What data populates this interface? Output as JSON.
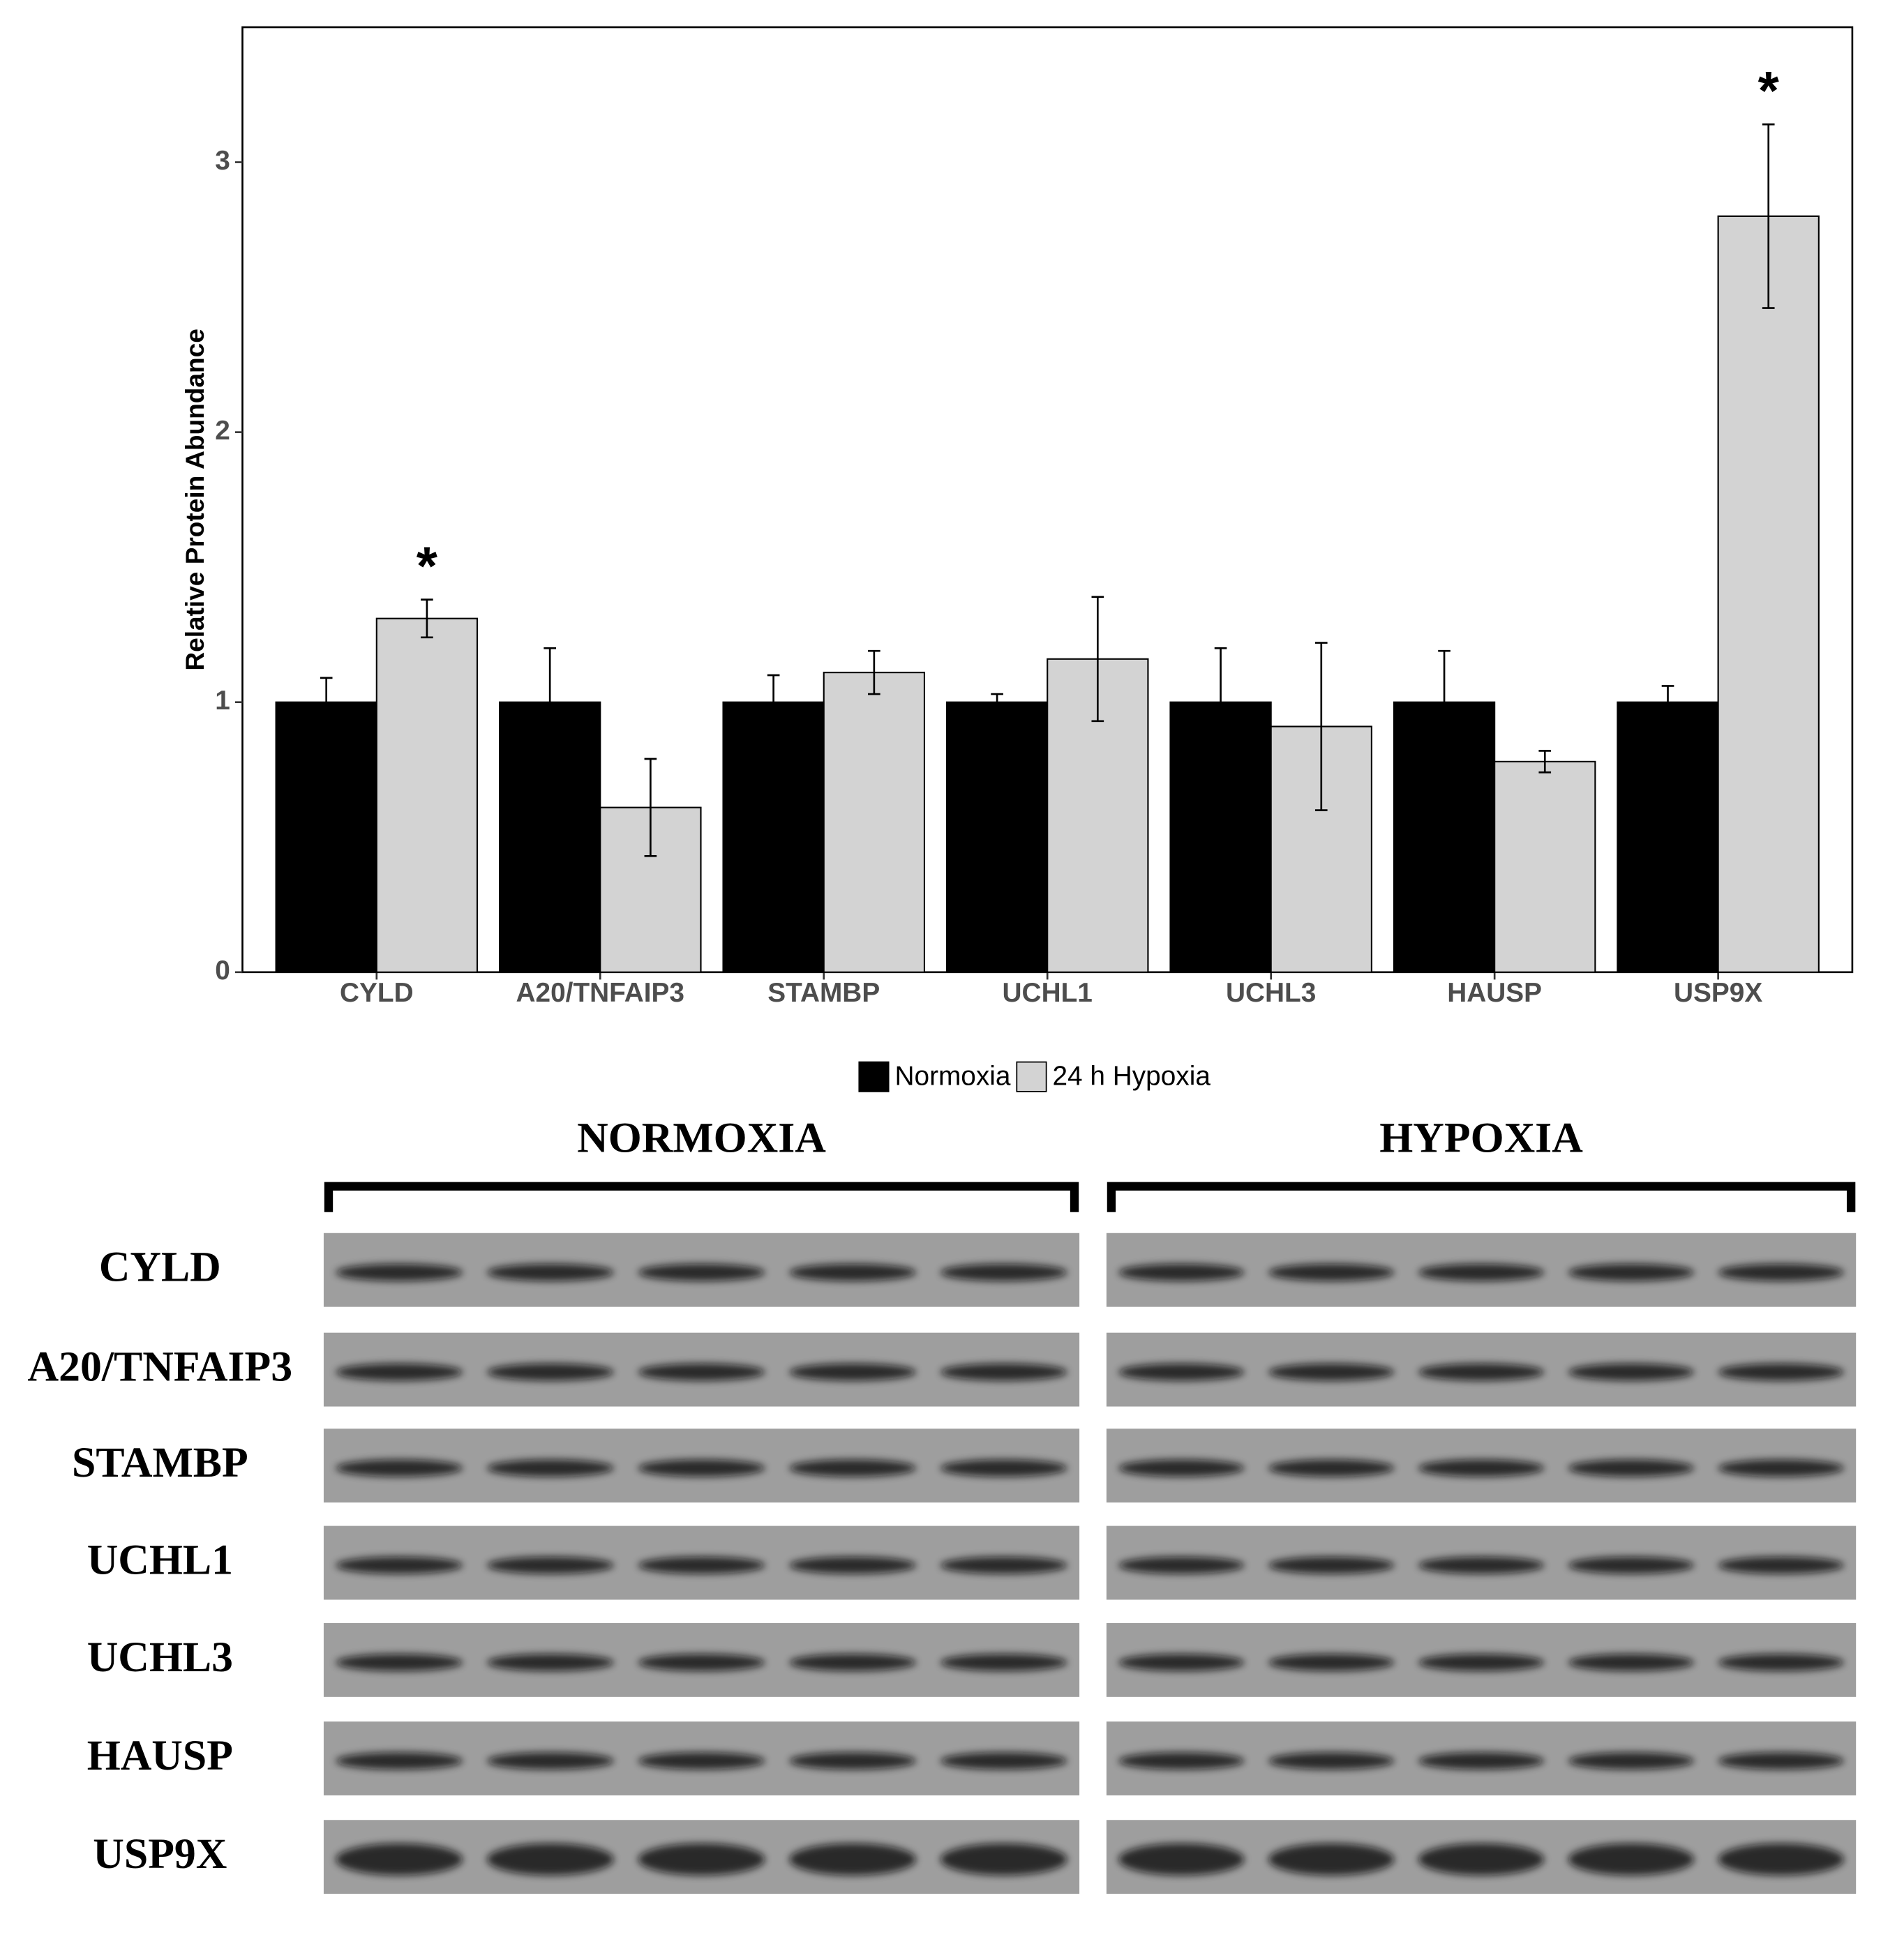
{
  "chart_data": {
    "type": "bar",
    "y_label": "Relative Protein Abundance",
    "categories": [
      "CYLD",
      "A20/TNFAIP3",
      "STAMBP",
      "UCHL1",
      "UCHL3",
      "HAUSP",
      "USP9X"
    ],
    "series": [
      {
        "name": "Normoxia",
        "color": "#000000",
        "values": [
          1,
          1,
          1,
          1,
          1,
          1,
          1
        ],
        "errors": [
          0.09,
          0.2,
          0.1,
          0.03,
          0.2,
          0.19,
          0.06
        ]
      },
      {
        "name": "24 h Hypoxia",
        "color": "#d3d3d3",
        "values": [
          1.31,
          0.61,
          1.11,
          1.16,
          0.91,
          0.78,
          2.8
        ],
        "errors": [
          0.07,
          0.18,
          0.08,
          0.23,
          0.31,
          0.04,
          0.34
        ],
        "markers": [
          "*",
          null,
          null,
          null,
          null,
          null,
          "*"
        ]
      }
    ],
    "ylim": [
      0,
      3.5
    ],
    "yticks": [
      0,
      1,
      2,
      3
    ],
    "grid": false,
    "legend": "bottom"
  },
  "blot": {
    "groups": [
      "NORMOXIA",
      "HYPOXIA"
    ],
    "rows": [
      "CYLD",
      "A20/TNFAIP3",
      "STAMBP",
      "UCHL1",
      "UCHL3",
      "HAUSP",
      "USP9X"
    ]
  }
}
